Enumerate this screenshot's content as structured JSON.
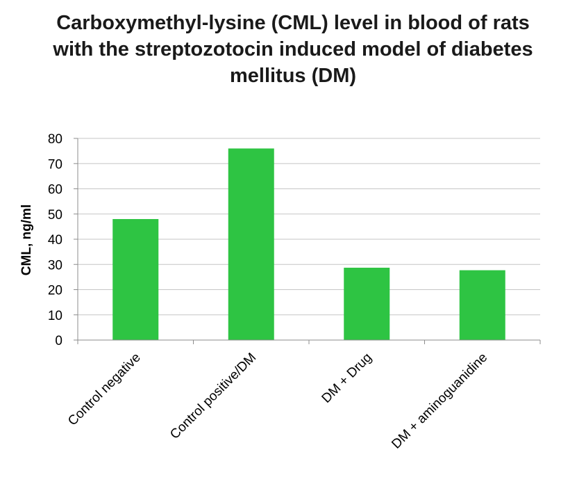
{
  "title_lines": [
    "Carboxymethyl-lysine (CML) level in blood of rats",
    "with the streptozotocin induced model of diabetes",
    "mellitus (DM)"
  ],
  "chart_data": {
    "type": "bar",
    "title": "Carboxymethyl-lysine (CML) level in blood of rats with the streptozotocin induced model of diabetes mellitus (DM)",
    "xlabel": "",
    "ylabel": "CML, ng/ml",
    "categories": [
      "Control negative",
      "Control positive/DM",
      "DM + Drug",
      "DM + aminoguanidine"
    ],
    "series": [
      {
        "values": [
          48,
          76,
          28.7,
          27.7
        ]
      }
    ],
    "ylim": [
      0,
      80
    ],
    "yticks": [
      0,
      10,
      20,
      30,
      40,
      50,
      60,
      70,
      80
    ],
    "grid": true,
    "legend": "none",
    "bar_color": "#2ec443",
    "grid_color": "#c6c6c6",
    "axis_color": "#8c8c8c"
  }
}
